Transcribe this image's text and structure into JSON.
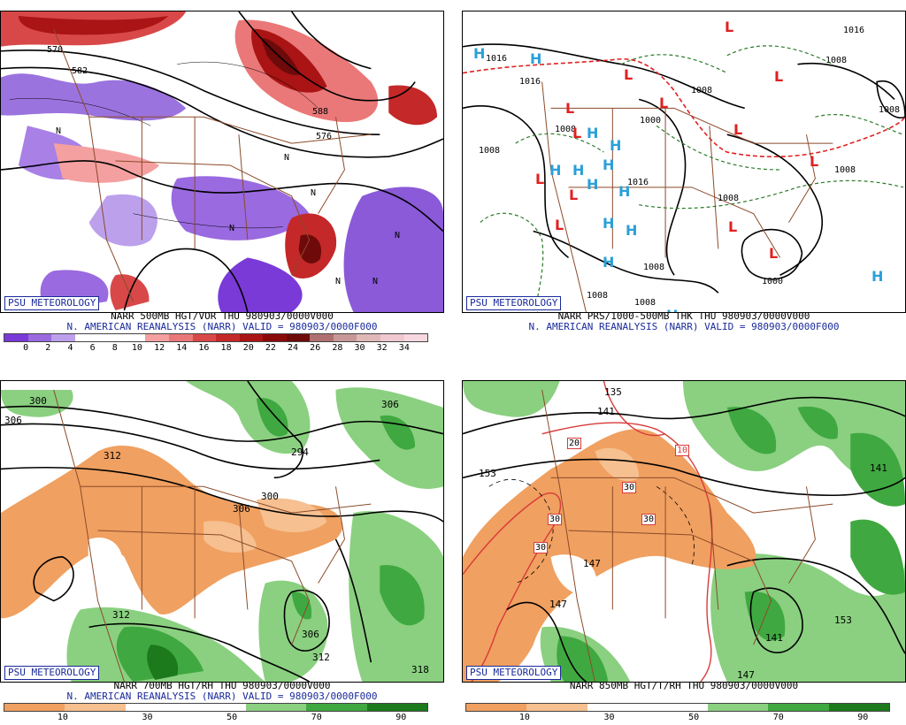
{
  "badge": "PSU METEOROLOGY",
  "panels": {
    "top_left": {
      "caption": "NARR 500MB HGT/VOR THU 980903/0000V000",
      "subcaption": "N. AMERICAN REANALYSIS (NARR) VALID = 980903/0000F000",
      "legend_ticks": [
        "0",
        "2",
        "4",
        "6",
        "8",
        "10",
        "12",
        "14",
        "16",
        "18",
        "20",
        "22",
        "24",
        "26",
        "28",
        "30",
        "32",
        "34"
      ],
      "legend_colors": [
        "#7a3ad8",
        "#9a6ae0",
        "#bca0ec",
        "#ffffff",
        "#ffffff",
        "#ffffff",
        "#f4a0a0",
        "#ea7878",
        "#d94848",
        "#c42828",
        "#aa1414",
        "#8a0a0a",
        "#6e0a0a",
        "#b07070",
        "#c89898",
        "#e0b8b8",
        "#f0c8d0",
        "#f8d8e0"
      ],
      "contour_labels": [
        "570",
        "582",
        "588",
        "576",
        "N",
        "N",
        "N",
        "N",
        "N",
        "N",
        "N"
      ]
    },
    "top_right": {
      "caption": "NARR PRS/1000-500MB THK THU 980903/0000V000",
      "subcaption": "N. AMERICAN REANALYSIS (NARR) VALID = 980903/0000F000",
      "contour_labels": [
        "1016",
        "1016",
        "1016",
        "1008",
        "1008",
        "1008",
        "1000",
        "1008",
        "1008",
        "1000",
        "1008",
        "1008",
        "1008",
        "1016",
        "1008",
        "1008"
      ],
      "highs": [
        "H",
        "H",
        "H",
        "H",
        "H",
        "H",
        "H",
        "H",
        "H",
        "H",
        "H",
        "H",
        "H",
        "H"
      ],
      "lows": [
        "L",
        "L",
        "L",
        "L",
        "L",
        "L",
        "L",
        "L",
        "L",
        "L",
        "L",
        "L",
        "L"
      ]
    },
    "bottom_left": {
      "caption": "NARR 700MB HGT/RH THU 980903/0000V000",
      "subcaption": "N. AMERICAN REANALYSIS (NARR) VALID = 980903/0000F000",
      "legend_ticks": [
        "10",
        "30",
        "50",
        "70",
        "90"
      ],
      "legend_colors": [
        "#f0a060",
        "#f6c090",
        "#ffffff",
        "#ffffff",
        "#8ad080",
        "#40a840",
        "#1c7a1c"
      ],
      "contour_labels": [
        "300",
        "306",
        "312",
        "294",
        "306",
        "300",
        "312",
        "306",
        "312",
        "306",
        "318"
      ]
    },
    "bottom_right": {
      "caption": "NARR 850MB HGT/T/RH THU 980903/0000V000",
      "legend_ticks": [
        "10",
        "30",
        "50",
        "70",
        "90"
      ],
      "legend_colors": [
        "#f0a060",
        "#f6c090",
        "#ffffff",
        "#ffffff",
        "#8ad080",
        "#40a840",
        "#1c7a1c"
      ],
      "contour_labels": [
        "135",
        "141",
        "153",
        "147",
        "147",
        "141",
        "153",
        "147",
        "141",
        "20",
        "10",
        "30",
        "30",
        "30",
        "30"
      ]
    }
  }
}
